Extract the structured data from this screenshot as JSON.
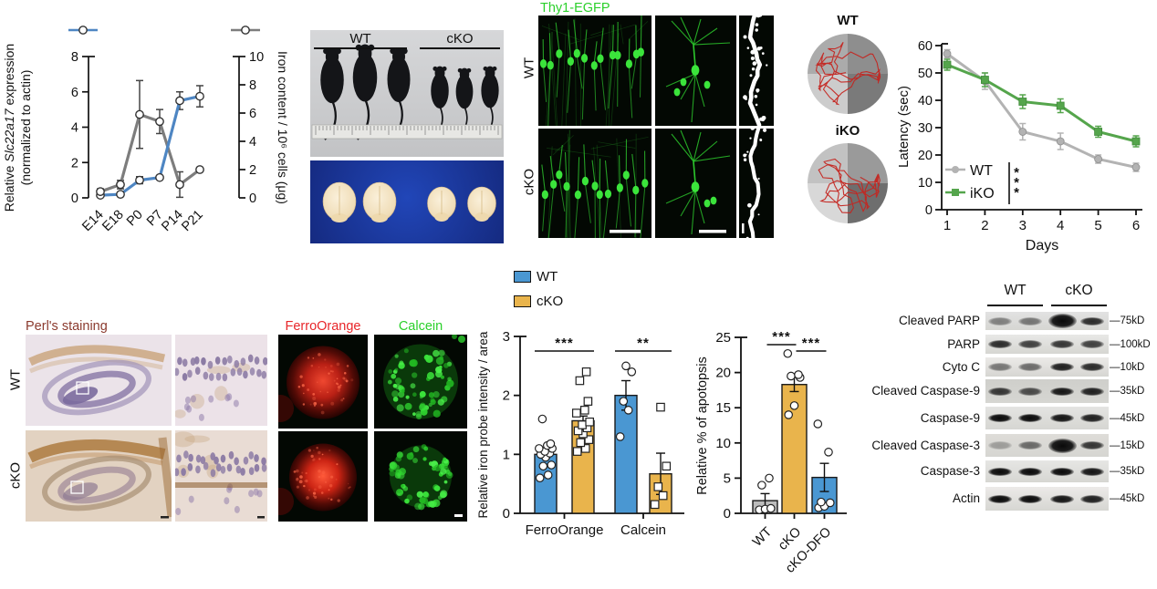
{
  "figure": {
    "background": "#ffffff"
  },
  "chart_data": [
    {
      "id": "slc22a17_iron",
      "type": "line",
      "x_categories": [
        "E14",
        "E18",
        "P0",
        "P7",
        "P14",
        "P21"
      ],
      "left_axis": {
        "label_pre": "Relative ",
        "label_italic": "Slc22a17",
        "label_post": " expression",
        "label_line2": "(normalized to actin)",
        "range": [
          0,
          8
        ],
        "ticks": [
          0,
          2,
          4,
          6,
          8
        ]
      },
      "right_axis": {
        "label": "Iron content / 10⁶ cells (μg)",
        "range": [
          0,
          10
        ],
        "ticks": [
          0,
          2,
          4,
          6,
          8,
          10
        ]
      },
      "series": [
        {
          "name": "Slc22a17 expression",
          "axis": "left",
          "color": "#4e86c3",
          "marker": "circle",
          "values": [
            0.15,
            0.2,
            1.0,
            1.15,
            5.5,
            5.75
          ],
          "errors": [
            0.08,
            0.1,
            0.2,
            0.12,
            0.5,
            0.6
          ]
        },
        {
          "name": "Iron content",
          "axis": "right",
          "color": "#7d7d7d",
          "marker": "circle",
          "values": [
            0.44,
            0.94,
            5.9,
            5.4,
            0.94,
            2.0
          ],
          "errors": [
            0.2,
            0.3,
            2.4,
            0.85,
            0.9,
            0.15
          ]
        }
      ]
    },
    {
      "id": "water_maze_latency",
      "type": "line",
      "x": [
        1,
        2,
        3,
        4,
        5,
        6
      ],
      "xlabel": "Days",
      "ylabel": "Latency (sec)",
      "ylim": [
        0,
        60
      ],
      "yticks": [
        0,
        10,
        20,
        30,
        40,
        50,
        60
      ],
      "series": [
        {
          "name": "WT",
          "color": "#b3b3b3",
          "marker": "circle",
          "values": [
            57,
            47,
            28.5,
            25,
            18.5,
            15.5
          ],
          "errors": [
            1.5,
            3,
            3,
            3,
            1.5,
            1.5
          ]
        },
        {
          "name": "iKO",
          "color": "#55a54c",
          "marker": "square",
          "values": [
            53,
            47.5,
            39.5,
            38,
            28.5,
            25
          ],
          "errors": [
            2,
            2.5,
            2.5,
            2.5,
            2,
            2
          ]
        }
      ],
      "significance": "***",
      "legend_position": "lower-left"
    },
    {
      "id": "iron_probe_intensity",
      "type": "bar",
      "ylabel": "Relative iron probe intensity / area",
      "ylim": [
        0,
        3
      ],
      "yticks": [
        0,
        1,
        2,
        3
      ],
      "categories": [
        "FerroOrange",
        "Calcein"
      ],
      "series": [
        {
          "name": "WT",
          "color": "#4a97d2",
          "marker": "circle",
          "values": [
            1.0,
            2.0
          ],
          "errors": [
            0.06,
            0.25
          ],
          "points": [
            [
              0.6,
              0.65,
              0.8,
              0.82,
              0.95,
              1.0,
              1.02,
              1.05,
              1.1,
              1.1,
              1.15,
              1.18,
              1.6
            ],
            [
              1.3,
              1.75,
              1.9,
              2.4,
              2.5
            ]
          ]
        },
        {
          "name": "cKO",
          "color": "#e9b44c",
          "marker": "square",
          "values": [
            1.57,
            0.67
          ],
          "errors": [
            0.08,
            0.35
          ],
          "points": [
            [
              1.05,
              1.1,
              1.2,
              1.25,
              1.35,
              1.4,
              1.45,
              1.5,
              1.55,
              1.7,
              1.75,
              1.9,
              2.25,
              2.4
            ],
            [
              0.15,
              0.3,
              0.45,
              0.8,
              1.8
            ]
          ]
        }
      ],
      "significance": [
        {
          "label": "***",
          "category": "FerroOrange"
        },
        {
          "label": "**",
          "category": "Calcein"
        }
      ]
    },
    {
      "id": "apoptosis_percent",
      "type": "bar",
      "ylabel": "Relative % of apotopsis",
      "ylim": [
        0,
        25
      ],
      "yticks": [
        0,
        5,
        10,
        15,
        20,
        25
      ],
      "categories": [
        "WT",
        "cKO",
        "cKO-DFO"
      ],
      "bar_colors": [
        "#bcbcbc",
        "#e9b44c",
        "#4a97d2"
      ],
      "values": [
        1.8,
        18.3,
        5.1
      ],
      "errors": [
        1.0,
        1.0,
        2.0
      ],
      "points": [
        [
          0.5,
          0.6,
          0.7,
          4.0,
          5.0
        ],
        [
          14.0,
          15.3,
          19.3,
          19.5,
          19.7,
          22.7
        ],
        [
          0.8,
          1.0,
          1.5,
          1.6,
          8.7,
          12.7
        ]
      ],
      "significance": [
        {
          "label": "***",
          "pair": [
            0,
            1
          ]
        },
        {
          "label": "***",
          "pair": [
            1,
            2
          ]
        }
      ]
    }
  ],
  "panels": {
    "mice": {
      "group_labels": [
        "WT",
        "cKO"
      ]
    },
    "thy1": {
      "title": "Thy1-EGFP",
      "title_color": "#2bd02b",
      "row_labels": [
        "WT",
        "cKO"
      ]
    },
    "maze": {
      "labels": [
        "WT",
        "iKO"
      ],
      "path_color": "#c42520",
      "wt_quadrants": [
        "#ababab",
        "#8e8e8e",
        "#cccccc",
        "#7a7a7a"
      ],
      "iko_quadrants": [
        "#c2c2c2",
        "#9a9a9a",
        "#d8d8d8",
        "#6e6e6e"
      ]
    },
    "perls": {
      "title": "Perl's staining",
      "title_color": "#8b3a2e",
      "row_labels": [
        "WT",
        "cKO"
      ]
    },
    "probes": {
      "labels": [
        {
          "text": "FerroOrange",
          "color": "#e8262a"
        },
        {
          "text": "Calcein",
          "color": "#2bd02b"
        }
      ]
    },
    "bar_legend": {
      "items": [
        {
          "label": "WT",
          "color": "#4a97d2"
        },
        {
          "label": "cKO",
          "color": "#e9b44c"
        }
      ]
    },
    "blot": {
      "group_labels": [
        "WT",
        "cKO"
      ],
      "rows": [
        {
          "label": "Cleaved PARP",
          "mw": "75kD",
          "lanes": [
            0.45,
            0.5,
            1.0,
            0.85
          ],
          "blob_lane": 2
        },
        {
          "label": "PARP",
          "mw": "100kD",
          "lanes": [
            0.85,
            0.75,
            0.8,
            0.75
          ]
        },
        {
          "label": "Cyto C",
          "mw": "10kD",
          "lanes": [
            0.5,
            0.55,
            0.9,
            0.85
          ]
        },
        {
          "label": "Cleaved Caspase-9",
          "mw": "35kD",
          "lanes": [
            0.8,
            0.7,
            0.95,
            0.9
          ]
        },
        {
          "label": "Caspase-9",
          "mw": "45kD",
          "lanes": [
            1,
            1,
            0.95,
            0.9
          ]
        },
        {
          "label": "Cleaved Caspase-3",
          "mw": "15kD",
          "lanes": [
            0.3,
            0.55,
            1.0,
            0.8
          ],
          "blob_lane": 2
        },
        {
          "label": "Caspase-3",
          "mw": "35kD",
          "lanes": [
            1,
            1,
            1,
            0.95
          ]
        },
        {
          "label": "Actin",
          "mw": "45kD",
          "lanes": [
            1,
            1,
            0.95,
            0.9
          ]
        }
      ]
    }
  }
}
